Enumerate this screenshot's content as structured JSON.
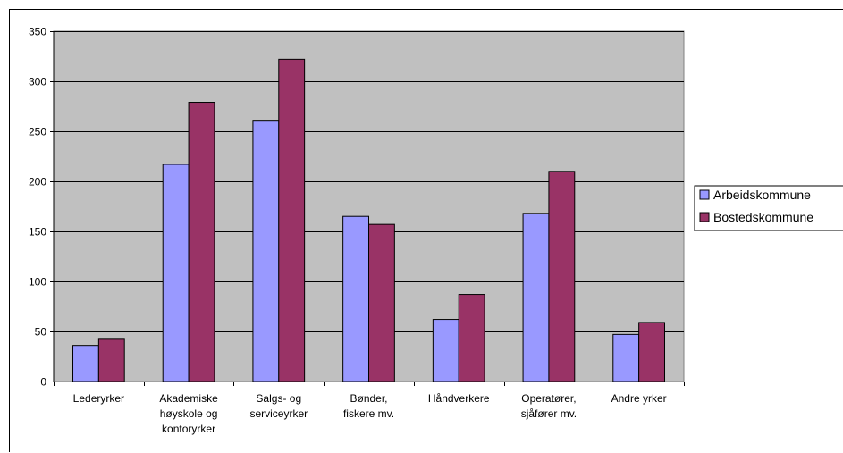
{
  "chart_data": {
    "type": "bar",
    "categories": [
      [
        "Lederyrker"
      ],
      [
        "Akademiske",
        "høyskole og",
        "kontoryrker"
      ],
      [
        "Salgs- og",
        "serviceyrker"
      ],
      [
        "Bønder,",
        "fiskere mv."
      ],
      [
        "Håndverkere"
      ],
      [
        "Operatører,",
        "sjåfører mv."
      ],
      [
        "Andre yrker"
      ]
    ],
    "series": [
      {
        "name": "Arbeidskommune",
        "color": "#9999ff",
        "values": [
          36,
          217,
          261,
          165,
          62,
          168,
          47
        ]
      },
      {
        "name": "Bostedskommune",
        "color": "#993366",
        "values": [
          43,
          279,
          322,
          157,
          87,
          210,
          59
        ]
      }
    ],
    "ylim": [
      0,
      350
    ],
    "yticks": [
      0,
      50,
      100,
      150,
      200,
      250,
      300,
      350
    ],
    "plot_background": "#c0c0c0",
    "grid": true,
    "legend_position": "right"
  }
}
